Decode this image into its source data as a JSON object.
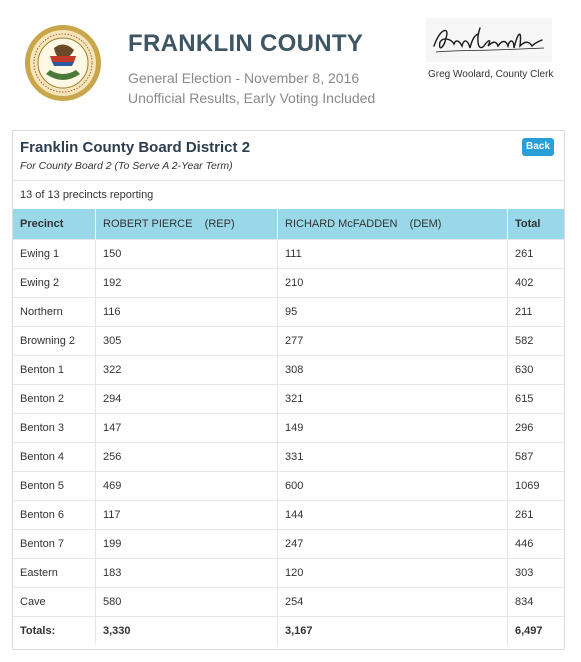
{
  "header": {
    "title": "FRANKLIN COUNTY",
    "subtitle_line1": "General Election - November 8, 2016",
    "subtitle_line2": "Unofficial Results, Early Voting Included",
    "clerk": "Greg Woolard, County Clerk"
  },
  "race": {
    "title": "Franklin County Board District 2",
    "subtitle": "For County Board 2 (To Serve A 2-Year Term)",
    "back_label": "Back",
    "precincts_reporting": "13 of 13 precincts reporting"
  },
  "table": {
    "headers": [
      "Precinct",
      "ROBERT PIERCE    (REP)",
      "RICHARD McFADDEN    (DEM)",
      "Total"
    ],
    "rows": [
      [
        "Ewing 1",
        "150",
        "111",
        "261"
      ],
      [
        "Ewing 2",
        "192",
        "210",
        "402"
      ],
      [
        "Northern",
        "116",
        "95",
        "211"
      ],
      [
        "Browning 2",
        "305",
        "277",
        "582"
      ],
      [
        "Benton 1",
        "322",
        "308",
        "630"
      ],
      [
        "Benton 2",
        "294",
        "321",
        "615"
      ],
      [
        "Benton 3",
        "147",
        "149",
        "296"
      ],
      [
        "Benton 4",
        "256",
        "331",
        "587"
      ],
      [
        "Benton 5",
        "469",
        "600",
        "1069"
      ],
      [
        "Benton 6",
        "117",
        "144",
        "261"
      ],
      [
        "Benton 7",
        "199",
        "247",
        "446"
      ],
      [
        "Eastern",
        "183",
        "120",
        "303"
      ],
      [
        "Cave",
        "580",
        "254",
        "834"
      ]
    ],
    "totals": [
      "Totals:",
      "3,330",
      "3,167",
      "6,497"
    ]
  },
  "colors": {
    "title": "#3d5564",
    "header_row": "#99d8e8",
    "button": "#2a9fd6"
  },
  "icons": {
    "seal": "state-seal-icon",
    "signature": "clerk-signature"
  }
}
